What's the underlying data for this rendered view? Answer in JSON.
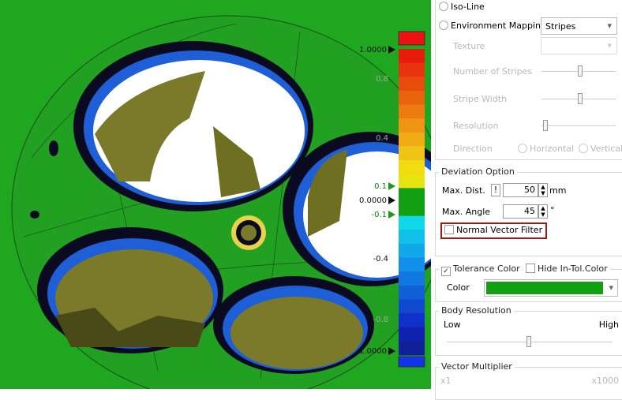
{
  "scale": {
    "labels": [
      "1.0000",
      "0.8",
      "0.4",
      "0.1",
      "0.0000",
      "-0.1",
      "-0.4",
      "-0.8",
      "-1.0000"
    ]
  },
  "panel": {
    "iso_line": "Iso-Line",
    "environment_mapping": "Environment Mapping",
    "mapping_mode": "Stripes",
    "texture": "Texture",
    "number_of_stripes": "Number of Stripes",
    "stripe_width": "Stripe Width",
    "resolution": "Resolution",
    "direction": "Direction",
    "horizontal": "Horizontal",
    "vertical": "Vertical",
    "deviation_option": "Deviation Option",
    "max_dist": "Max. Dist.",
    "warn": "!",
    "max_dist_value": 50,
    "max_dist_unit": "mm",
    "max_angle": "Max. Angle",
    "max_angle_value": 45,
    "max_angle_unit": "°",
    "normal_vector_filter": "Normal Vector Filter",
    "tolerance_color": "Tolerance Color",
    "hide_in_tol_color": "Hide In-Tol.Color",
    "color": "Color",
    "body_resolution": "Body Resolution",
    "low": "Low",
    "high": "High",
    "vector_multiplier": "Vector Multiplier",
    "x1": "x1",
    "x1000": "x1000"
  }
}
